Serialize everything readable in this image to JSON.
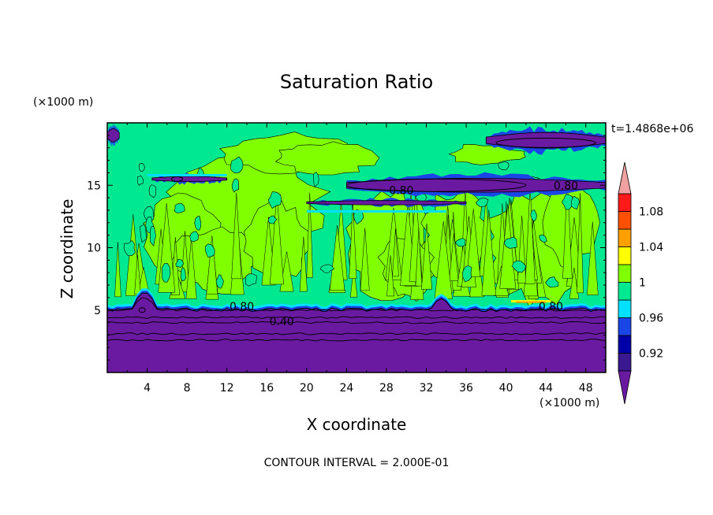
{
  "chart_data": {
    "type": "heatmap",
    "title": "Saturation Ratio",
    "xlabel": "X coordinate",
    "ylabel": "Z coordinate",
    "x_unit": "(×1000 m)",
    "y_unit": "(×1000 m)",
    "time_label": "t=1.4868e+06",
    "footer": "CONTOUR INTERVAL = 2.000E-01",
    "xlim": [
      0,
      50
    ],
    "ylim": [
      0,
      20
    ],
    "x_ticks": [
      4,
      8,
      12,
      16,
      20,
      24,
      28,
      32,
      36,
      40,
      44,
      48
    ],
    "x_tick_labels": [
      "4",
      "8",
      "12",
      "16",
      "20",
      "24",
      "28",
      "32",
      "36",
      "40",
      "44",
      "48"
    ],
    "y_ticks": [
      5,
      10,
      15
    ],
    "y_tick_labels": [
      "5",
      "10",
      "15"
    ],
    "contour_labels": [
      {
        "text": "0.80",
        "x": 13.5,
        "z": 5.3
      },
      {
        "text": "0.40",
        "x": 17.5,
        "z": 4.1
      },
      {
        "text": "0.80",
        "x": 44.5,
        "z": 5.3
      },
      {
        "text": "0.80",
        "x": 29.5,
        "z": 14.6
      },
      {
        "text": "0.80",
        "x": 46.0,
        "z": 15.0
      }
    ],
    "colorbar": {
      "bounds": [
        0.9,
        0.92,
        0.94,
        0.96,
        0.98,
        1.0,
        1.02,
        1.04,
        1.06,
        1.08,
        1.1
      ],
      "colors": [
        "#3a1890",
        "#0000a8",
        "#1a46e8",
        "#00e0ff",
        "#00e890",
        "#80ff00",
        "#ffff00",
        "#ffa000",
        "#ff5000",
        "#ff1a1a"
      ],
      "under_color": "#6a1aa0",
      "over_color": "#f0a0a0",
      "tick_labels": [
        {
          "value": 0.92,
          "text": "0.92"
        },
        {
          "value": 0.96,
          "text": "0.96"
        },
        {
          "value": 1.0,
          "text": "1"
        },
        {
          "value": 1.04,
          "text": "1.04"
        },
        {
          "value": 1.08,
          "text": "1.08"
        }
      ]
    },
    "colors": {
      "saturated_low": "#6a1aa0",
      "near_one": "#00e890",
      "above_one": "#80ff00",
      "mid_blue": "#1a46e8",
      "cyan": "#00e0ff",
      "yellow": "#ffff00",
      "orange": "#ffa000"
    }
  }
}
